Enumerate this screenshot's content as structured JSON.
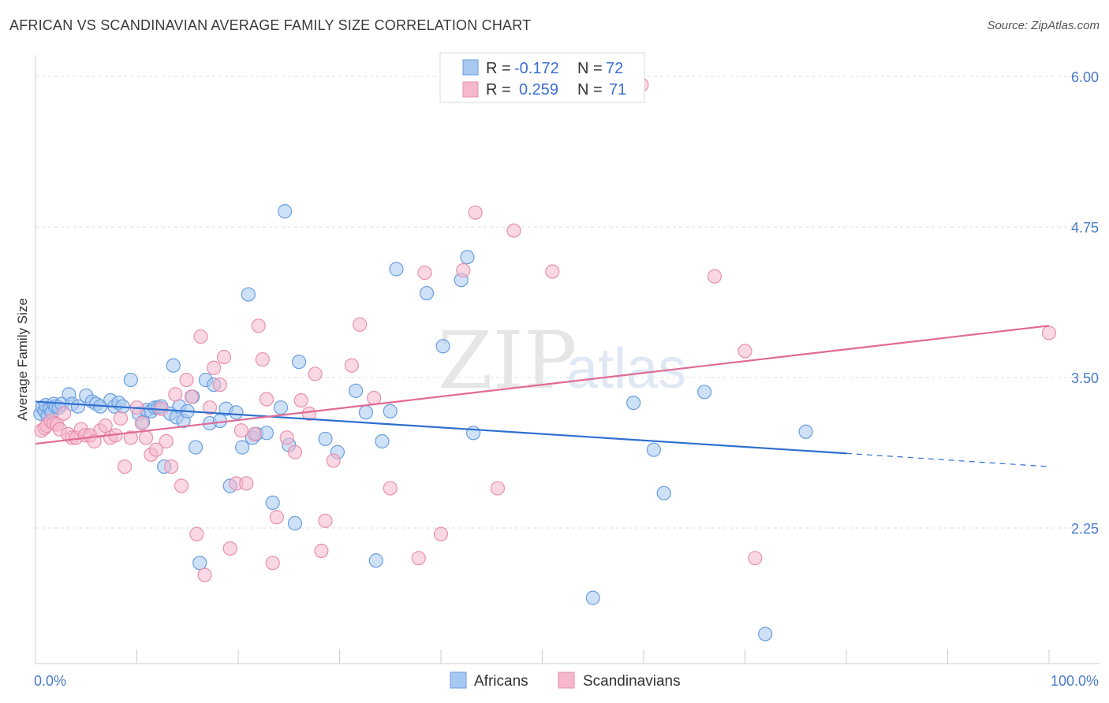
{
  "title": "AFRICAN VS SCANDINAVIAN AVERAGE FAMILY SIZE CORRELATION CHART",
  "source": "Source: ZipAtlas.com",
  "watermark": {
    "zip": "ZIP",
    "atlas": "atlas"
  },
  "colors": {
    "africans_fill": "#a8c8f0",
    "africans_stroke": "#6a9ee0",
    "africans_line": "#2f6fd0",
    "scandinavians_fill": "#f6b8cc",
    "scandinavians_stroke": "#e890ae",
    "scandinavians_line": "#e06a94",
    "grid": "#dddddd",
    "axis_text": "#4a7ac8"
  },
  "legend": {
    "rows": [
      {
        "r_label": "R = ",
        "r_value": "-0.172",
        "n_label": "N = ",
        "n_value": "72"
      },
      {
        "r_label": "R = ",
        "r_value": "0.259",
        "n_label": "N = ",
        "n_value": "71"
      }
    ]
  },
  "chart_data": {
    "type": "scatter",
    "title": "AFRICAN VS SCANDINAVIAN AVERAGE FAMILY SIZE CORRELATION CHART",
    "xlabel": "",
    "ylabel": "Average Family Size",
    "xlim": [
      0,
      100
    ],
    "ylim": [
      1.0,
      6.1
    ],
    "x_tick_labels": [
      "0.0%",
      "100.0%"
    ],
    "y_ticks": [
      2.25,
      3.5,
      4.75,
      6.0
    ],
    "y_tick_labels": [
      "2.25",
      "3.50",
      "4.75",
      "6.00"
    ],
    "grid": true,
    "legend_position": "top-center",
    "series": [
      {
        "name": "Africans",
        "r": -0.172,
        "n": 72,
        "trend": {
          "x0": 0,
          "y0": 3.3,
          "x1": 80,
          "y1": 2.87,
          "dashed_to_x": 100,
          "dashed_to_y": 2.76
        },
        "points": [
          [
            0.5,
            3.2
          ],
          [
            0.7,
            3.25
          ],
          [
            0.9,
            3.22
          ],
          [
            1.0,
            3.27
          ],
          [
            1.2,
            3.18
          ],
          [
            1.4,
            3.24
          ],
          [
            1.6,
            3.21
          ],
          [
            1.8,
            3.28
          ],
          [
            2.0,
            3.26
          ],
          [
            2.3,
            3.25
          ],
          [
            2.6,
            3.28
          ],
          [
            3.3,
            3.36
          ],
          [
            3.6,
            3.28
          ],
          [
            4.2,
            3.26
          ],
          [
            5.0,
            3.35
          ],
          [
            5.6,
            3.3
          ],
          [
            6.0,
            3.28
          ],
          [
            6.4,
            3.26
          ],
          [
            7.4,
            3.31
          ],
          [
            7.8,
            3.26
          ],
          [
            8.2,
            3.29
          ],
          [
            8.6,
            3.26
          ],
          [
            9.4,
            3.48
          ],
          [
            10.2,
            3.2
          ],
          [
            10.6,
            3.13
          ],
          [
            11.0,
            3.23
          ],
          [
            11.4,
            3.22
          ],
          [
            11.8,
            3.25
          ],
          [
            12.1,
            3.25
          ],
          [
            12.4,
            3.26
          ],
          [
            12.7,
            2.76
          ],
          [
            13.3,
            3.2
          ],
          [
            13.6,
            3.6
          ],
          [
            13.9,
            3.17
          ],
          [
            14.2,
            3.26
          ],
          [
            14.6,
            3.14
          ],
          [
            15.0,
            3.22
          ],
          [
            15.5,
            3.34
          ],
          [
            15.8,
            2.92
          ],
          [
            16.2,
            1.96
          ],
          [
            16.8,
            3.48
          ],
          [
            17.2,
            3.12
          ],
          [
            17.6,
            3.44
          ],
          [
            18.2,
            3.14
          ],
          [
            18.8,
            3.24
          ],
          [
            19.2,
            2.6
          ],
          [
            19.8,
            3.21
          ],
          [
            20.4,
            2.92
          ],
          [
            21.0,
            4.19
          ],
          [
            21.4,
            3.0
          ],
          [
            21.8,
            3.03
          ],
          [
            22.8,
            3.04
          ],
          [
            23.4,
            2.46
          ],
          [
            24.2,
            3.25
          ],
          [
            24.6,
            4.88
          ],
          [
            25.0,
            2.94
          ],
          [
            25.6,
            2.29
          ],
          [
            26.0,
            3.63
          ],
          [
            28.6,
            2.99
          ],
          [
            29.8,
            2.88
          ],
          [
            31.6,
            3.39
          ],
          [
            32.6,
            3.21
          ],
          [
            33.6,
            1.98
          ],
          [
            34.2,
            2.97
          ],
          [
            35.0,
            3.22
          ],
          [
            35.6,
            4.4
          ],
          [
            38.6,
            4.2
          ],
          [
            40.2,
            3.76
          ],
          [
            42.0,
            4.31
          ],
          [
            42.6,
            4.5
          ],
          [
            43.2,
            3.04
          ],
          [
            55.0,
            1.67
          ],
          [
            59.0,
            3.29
          ],
          [
            61.0,
            2.9
          ],
          [
            62.0,
            2.54
          ],
          [
            66.0,
            3.38
          ],
          [
            72.0,
            1.37
          ],
          [
            76.0,
            3.05
          ]
        ]
      },
      {
        "name": "Scandinavians",
        "r": 0.259,
        "n": 71,
        "trend": {
          "x0": 0,
          "y0": 2.95,
          "x1": 100,
          "y1": 3.93
        },
        "points": [
          [
            0.6,
            3.06
          ],
          [
            0.9,
            3.08
          ],
          [
            1.1,
            3.1
          ],
          [
            1.5,
            3.14
          ],
          [
            1.8,
            3.12
          ],
          [
            2.1,
            3.11
          ],
          [
            2.4,
            3.07
          ],
          [
            2.8,
            3.2
          ],
          [
            3.2,
            3.03
          ],
          [
            3.6,
            3.0
          ],
          [
            4.0,
            3.0
          ],
          [
            4.5,
            3.07
          ],
          [
            4.9,
            3.02
          ],
          [
            5.4,
            3.02
          ],
          [
            5.8,
            2.97
          ],
          [
            6.4,
            3.06
          ],
          [
            6.9,
            3.1
          ],
          [
            7.4,
            3.0
          ],
          [
            7.9,
            3.02
          ],
          [
            8.4,
            3.16
          ],
          [
            8.8,
            2.76
          ],
          [
            9.4,
            3.0
          ],
          [
            10.0,
            3.25
          ],
          [
            10.5,
            3.12
          ],
          [
            10.9,
            3.0
          ],
          [
            11.4,
            2.86
          ],
          [
            11.9,
            2.9
          ],
          [
            12.4,
            3.24
          ],
          [
            12.9,
            2.97
          ],
          [
            13.4,
            2.76
          ],
          [
            13.8,
            3.36
          ],
          [
            14.4,
            2.6
          ],
          [
            14.9,
            3.48
          ],
          [
            15.4,
            3.34
          ],
          [
            15.9,
            2.2
          ],
          [
            16.3,
            3.84
          ],
          [
            16.7,
            1.86
          ],
          [
            17.2,
            3.25
          ],
          [
            17.6,
            3.58
          ],
          [
            18.2,
            3.44
          ],
          [
            18.6,
            3.67
          ],
          [
            19.2,
            2.08
          ],
          [
            19.8,
            2.62
          ],
          [
            20.3,
            3.06
          ],
          [
            20.8,
            2.62
          ],
          [
            21.6,
            3.03
          ],
          [
            22.0,
            3.93
          ],
          [
            22.4,
            3.65
          ],
          [
            22.8,
            3.32
          ],
          [
            23.4,
            1.96
          ],
          [
            23.8,
            2.34
          ],
          [
            24.8,
            3.0
          ],
          [
            25.6,
            2.88
          ],
          [
            26.2,
            3.31
          ],
          [
            27.0,
            3.2
          ],
          [
            27.6,
            3.53
          ],
          [
            28.2,
            2.06
          ],
          [
            28.6,
            2.31
          ],
          [
            29.4,
            2.81
          ],
          [
            31.2,
            3.6
          ],
          [
            32.0,
            3.94
          ],
          [
            33.4,
            3.33
          ],
          [
            35.0,
            2.58
          ],
          [
            37.8,
            2.0
          ],
          [
            38.4,
            4.37
          ],
          [
            40.0,
            2.2
          ],
          [
            42.2,
            4.39
          ],
          [
            43.4,
            4.87
          ],
          [
            45.6,
            2.58
          ],
          [
            47.2,
            4.72
          ],
          [
            51.0,
            4.38
          ],
          [
            59.8,
            5.93
          ],
          [
            67.0,
            4.34
          ],
          [
            70.0,
            3.72
          ],
          [
            71.0,
            2.0
          ],
          [
            100.0,
            3.87
          ]
        ]
      }
    ]
  }
}
